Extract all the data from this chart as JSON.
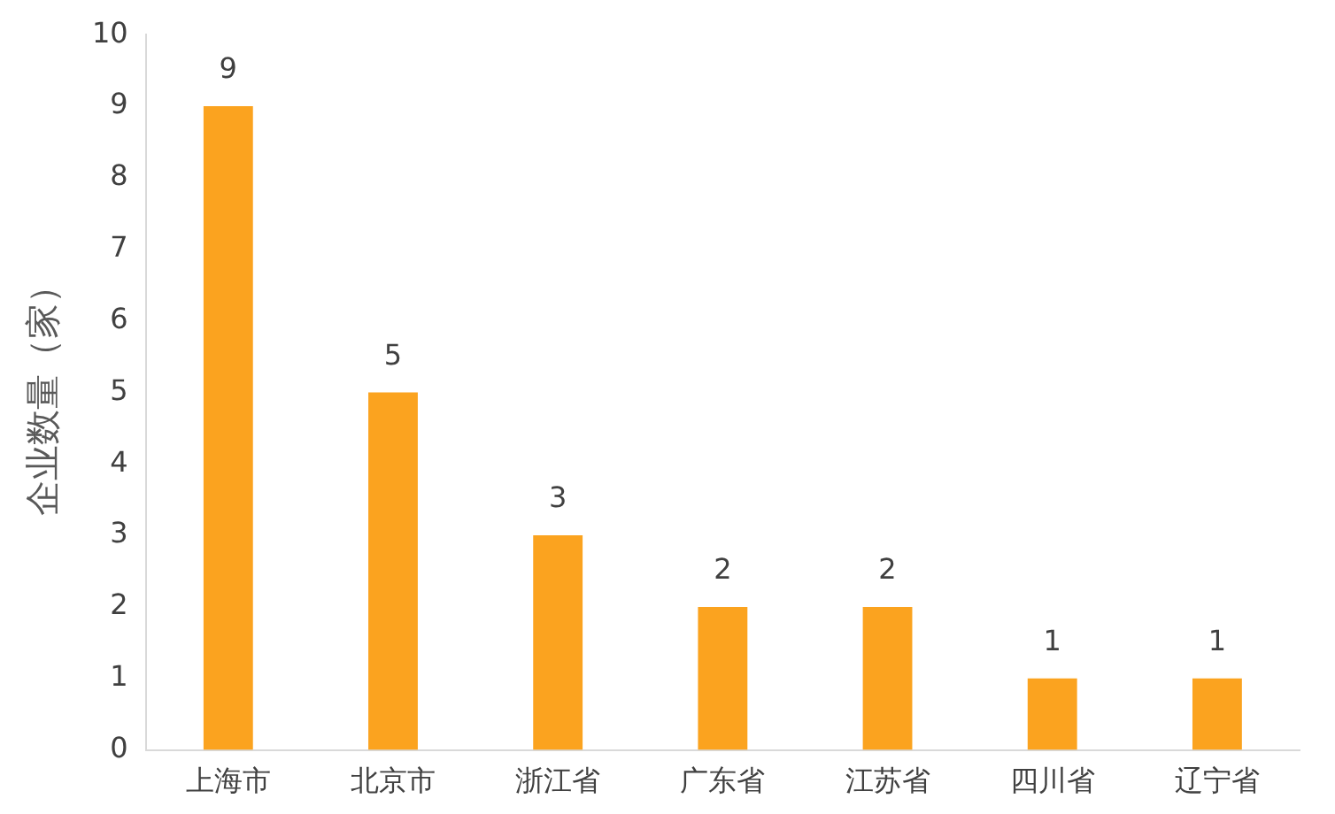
{
  "chart_data": {
    "type": "bar",
    "ylabel": "企业数量（家）",
    "categories": [
      "上海市",
      "北京市",
      "浙江省",
      "广东省",
      "江苏省",
      "四川省",
      "辽宁省"
    ],
    "values": [
      9,
      5,
      3,
      2,
      2,
      1,
      1
    ],
    "color": "#fba31f",
    "ylim": [
      0,
      10
    ],
    "yticks": [
      0,
      1,
      2,
      3,
      4,
      5,
      6,
      7,
      8,
      9,
      10
    ],
    "grid": false,
    "legend": false,
    "data_labels": true
  }
}
